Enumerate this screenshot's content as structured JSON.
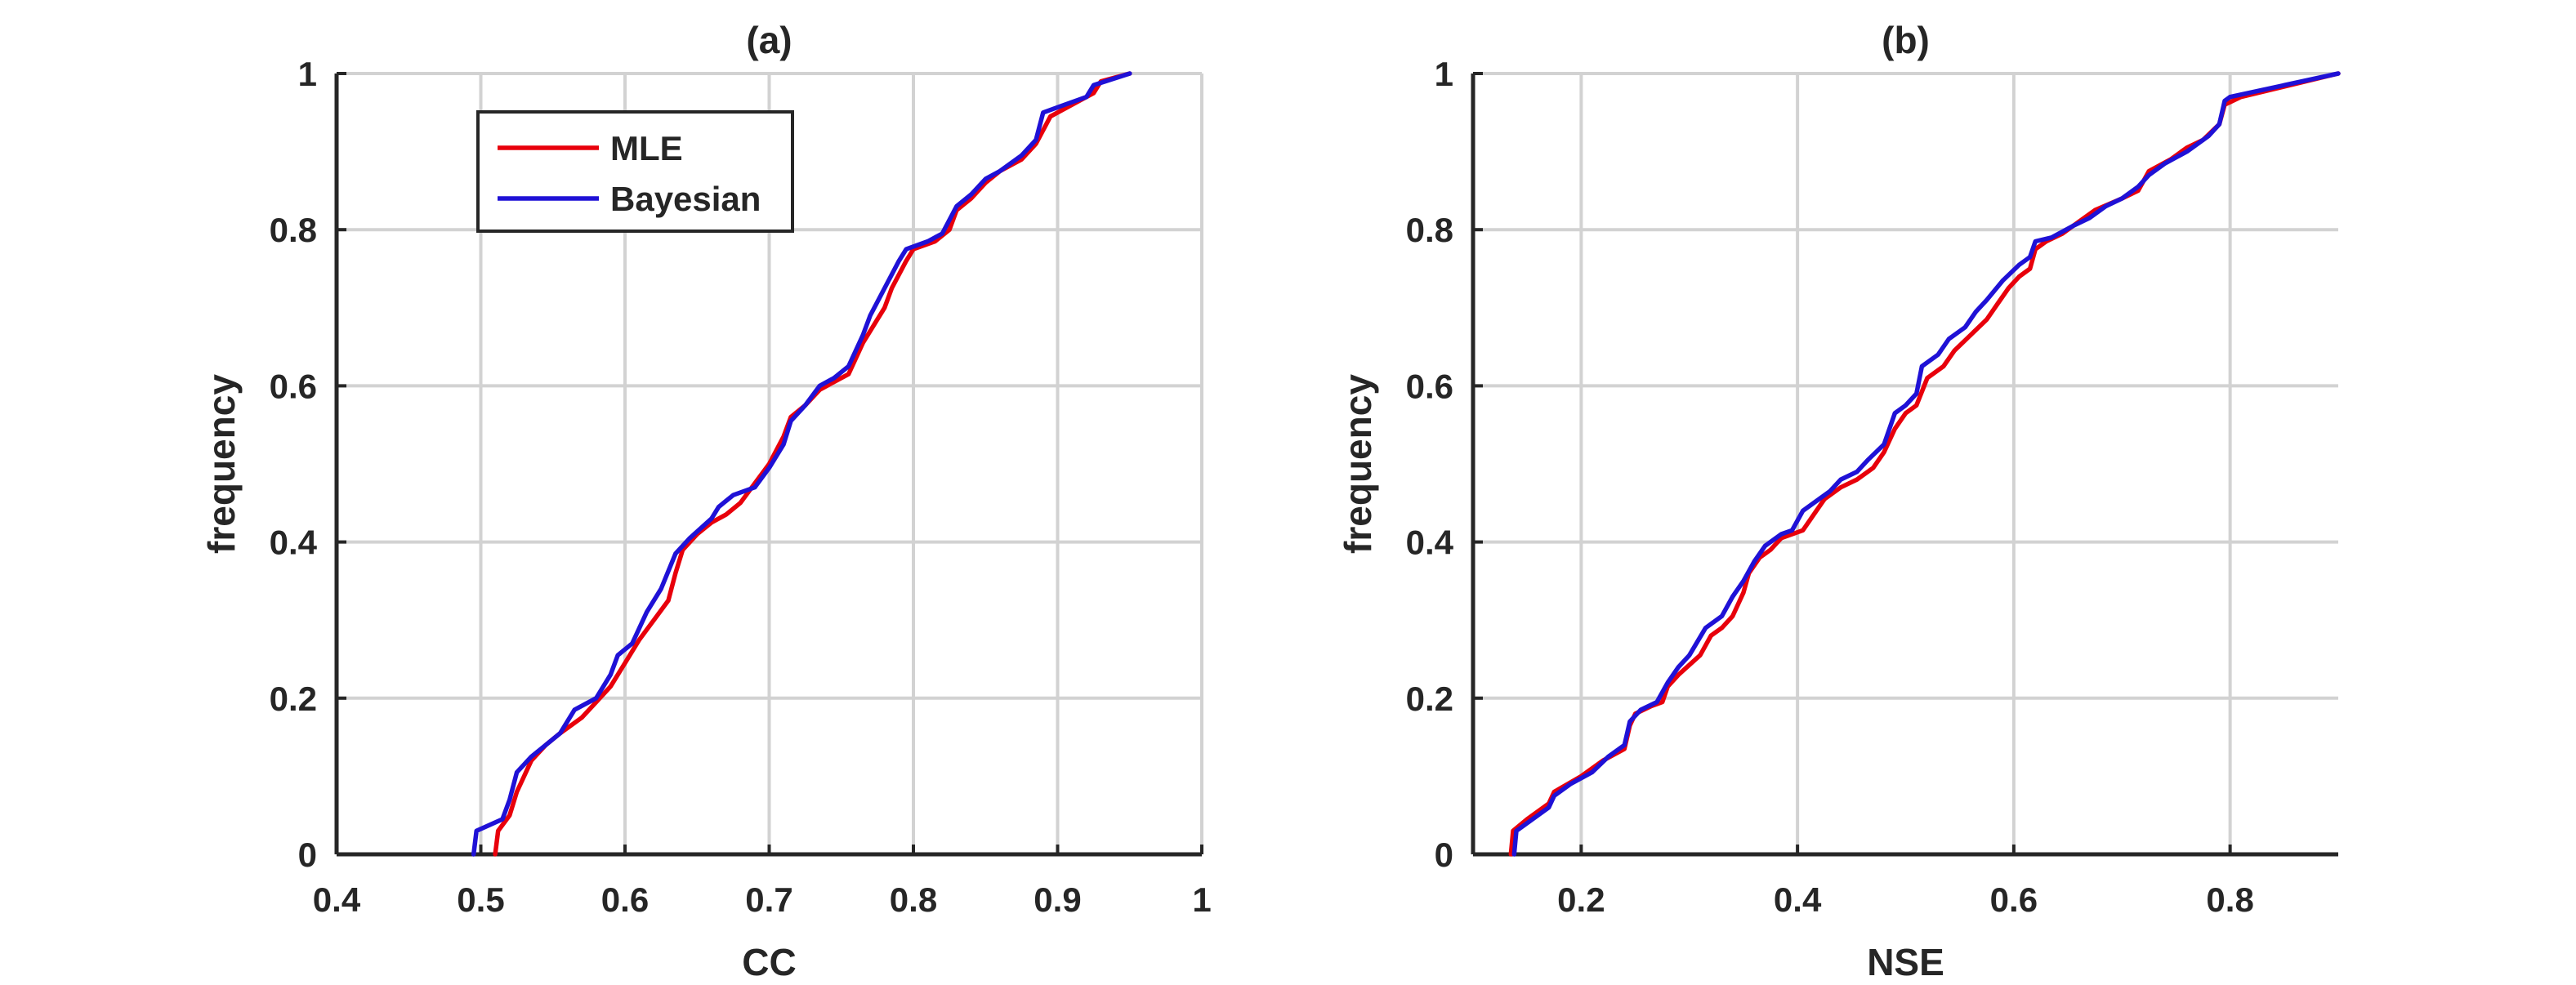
{
  "chart_data": [
    {
      "type": "line",
      "title": "(a)",
      "xlabel": "CC",
      "ylabel": "frequency",
      "xlim": [
        0.4,
        1
      ],
      "ylim": [
        0,
        1
      ],
      "xticks": [
        "0.4",
        "0.5",
        "0.6",
        "0.7",
        "0.8",
        "0.9",
        "1"
      ],
      "yticks": [
        "0",
        "0.2",
        "0.4",
        "0.6",
        "0.8",
        "1"
      ],
      "grid": true,
      "legend": {
        "placement": "top-left",
        "entries": [
          "MLE",
          "Bayesian"
        ]
      },
      "series": [
        {
          "name": "MLE",
          "color": "#e8000b",
          "points": [
            [
              0.51,
              0
            ],
            [
              0.512,
              0.03
            ],
            [
              0.52,
              0.05
            ],
            [
              0.525,
              0.08
            ],
            [
              0.53,
              0.1
            ],
            [
              0.535,
              0.12
            ],
            [
              0.545,
              0.14
            ],
            [
              0.555,
              0.155
            ],
            [
              0.57,
              0.175
            ],
            [
              0.58,
              0.195
            ],
            [
              0.59,
              0.215
            ],
            [
              0.6,
              0.245
            ],
            [
              0.61,
              0.275
            ],
            [
              0.62,
              0.3
            ],
            [
              0.63,
              0.325
            ],
            [
              0.635,
              0.36
            ],
            [
              0.64,
              0.39
            ],
            [
              0.65,
              0.41
            ],
            [
              0.66,
              0.425
            ],
            [
              0.67,
              0.435
            ],
            [
              0.68,
              0.45
            ],
            [
              0.69,
              0.475
            ],
            [
              0.7,
              0.5
            ],
            [
              0.71,
              0.535
            ],
            [
              0.715,
              0.56
            ],
            [
              0.725,
              0.575
            ],
            [
              0.735,
              0.595
            ],
            [
              0.745,
              0.605
            ],
            [
              0.755,
              0.615
            ],
            [
              0.765,
              0.655
            ],
            [
              0.775,
              0.685
            ],
            [
              0.78,
              0.7
            ],
            [
              0.785,
              0.725
            ],
            [
              0.795,
              0.76
            ],
            [
              0.8,
              0.775
            ],
            [
              0.815,
              0.785
            ],
            [
              0.825,
              0.8
            ],
            [
              0.83,
              0.825
            ],
            [
              0.84,
              0.84
            ],
            [
              0.85,
              0.86
            ],
            [
              0.86,
              0.875
            ],
            [
              0.875,
              0.89
            ],
            [
              0.885,
              0.91
            ],
            [
              0.895,
              0.945
            ],
            [
              0.91,
              0.96
            ],
            [
              0.925,
              0.975
            ],
            [
              0.93,
              0.99
            ],
            [
              0.95,
              1
            ]
          ]
        },
        {
          "name": "Bayesian",
          "color": "#1f11d6",
          "points": [
            [
              0.495,
              0
            ],
            [
              0.497,
              0.03
            ],
            [
              0.515,
              0.045
            ],
            [
              0.52,
              0.07
            ],
            [
              0.525,
              0.105
            ],
            [
              0.535,
              0.125
            ],
            [
              0.545,
              0.14
            ],
            [
              0.555,
              0.155
            ],
            [
              0.565,
              0.185
            ],
            [
              0.58,
              0.2
            ],
            [
              0.59,
              0.23
            ],
            [
              0.595,
              0.255
            ],
            [
              0.605,
              0.27
            ],
            [
              0.615,
              0.31
            ],
            [
              0.625,
              0.34
            ],
            [
              0.635,
              0.385
            ],
            [
              0.645,
              0.405
            ],
            [
              0.66,
              0.43
            ],
            [
              0.665,
              0.445
            ],
            [
              0.675,
              0.46
            ],
            [
              0.69,
              0.47
            ],
            [
              0.7,
              0.495
            ],
            [
              0.71,
              0.525
            ],
            [
              0.715,
              0.555
            ],
            [
              0.725,
              0.575
            ],
            [
              0.735,
              0.6
            ],
            [
              0.745,
              0.61
            ],
            [
              0.755,
              0.625
            ],
            [
              0.765,
              0.665
            ],
            [
              0.77,
              0.69
            ],
            [
              0.78,
              0.725
            ],
            [
              0.79,
              0.76
            ],
            [
              0.795,
              0.775
            ],
            [
              0.81,
              0.785
            ],
            [
              0.82,
              0.795
            ],
            [
              0.83,
              0.83
            ],
            [
              0.84,
              0.845
            ],
            [
              0.85,
              0.865
            ],
            [
              0.86,
              0.875
            ],
            [
              0.875,
              0.895
            ],
            [
              0.885,
              0.915
            ],
            [
              0.89,
              0.95
            ],
            [
              0.905,
              0.96
            ],
            [
              0.92,
              0.97
            ],
            [
              0.925,
              0.985
            ],
            [
              0.95,
              1
            ]
          ]
        }
      ]
    },
    {
      "type": "line",
      "title": "(b)",
      "xlabel": "NSE",
      "ylabel": "frequency",
      "xlim": [
        0.1,
        0.9
      ],
      "ylim": [
        0,
        1
      ],
      "xticks": [
        "0.2",
        "0.4",
        "0.6",
        "0.8"
      ],
      "yticks": [
        "0",
        "0.2",
        "0.4",
        "0.6",
        "0.8",
        "1"
      ],
      "grid": true,
      "series": [
        {
          "name": "MLE",
          "color": "#e8000b",
          "points": [
            [
              0.135,
              0
            ],
            [
              0.137,
              0.03
            ],
            [
              0.15,
              0.045
            ],
            [
              0.17,
              0.065
            ],
            [
              0.175,
              0.08
            ],
            [
              0.2,
              0.1
            ],
            [
              0.22,
              0.12
            ],
            [
              0.24,
              0.135
            ],
            [
              0.245,
              0.165
            ],
            [
              0.25,
              0.18
            ],
            [
              0.265,
              0.19
            ],
            [
              0.275,
              0.195
            ],
            [
              0.28,
              0.215
            ],
            [
              0.29,
              0.23
            ],
            [
              0.31,
              0.255
            ],
            [
              0.32,
              0.28
            ],
            [
              0.33,
              0.29
            ],
            [
              0.34,
              0.305
            ],
            [
              0.35,
              0.335
            ],
            [
              0.355,
              0.36
            ],
            [
              0.365,
              0.38
            ],
            [
              0.375,
              0.39
            ],
            [
              0.385,
              0.405
            ],
            [
              0.405,
              0.415
            ],
            [
              0.415,
              0.435
            ],
            [
              0.425,
              0.455
            ],
            [
              0.44,
              0.47
            ],
            [
              0.455,
              0.48
            ],
            [
              0.47,
              0.495
            ],
            [
              0.48,
              0.515
            ],
            [
              0.49,
              0.545
            ],
            [
              0.5,
              0.565
            ],
            [
              0.51,
              0.575
            ],
            [
              0.52,
              0.61
            ],
            [
              0.535,
              0.625
            ],
            [
              0.545,
              0.645
            ],
            [
              0.56,
              0.665
            ],
            [
              0.575,
              0.685
            ],
            [
              0.585,
              0.705
            ],
            [
              0.595,
              0.725
            ],
            [
              0.605,
              0.74
            ],
            [
              0.615,
              0.75
            ],
            [
              0.62,
              0.775
            ],
            [
              0.63,
              0.785
            ],
            [
              0.645,
              0.795
            ],
            [
              0.66,
              0.81
            ],
            [
              0.675,
              0.825
            ],
            [
              0.7,
              0.84
            ],
            [
              0.715,
              0.85
            ],
            [
              0.725,
              0.875
            ],
            [
              0.745,
              0.89
            ],
            [
              0.76,
              0.905
            ],
            [
              0.775,
              0.915
            ],
            [
              0.79,
              0.935
            ],
            [
              0.795,
              0.96
            ],
            [
              0.81,
              0.97
            ],
            [
              0.9,
              1
            ]
          ]
        },
        {
          "name": "Bayesian",
          "color": "#1f11d6",
          "points": [
            [
              0.138,
              0
            ],
            [
              0.14,
              0.03
            ],
            [
              0.155,
              0.045
            ],
            [
              0.17,
              0.06
            ],
            [
              0.175,
              0.075
            ],
            [
              0.19,
              0.09
            ],
            [
              0.21,
              0.105
            ],
            [
              0.225,
              0.125
            ],
            [
              0.24,
              0.14
            ],
            [
              0.245,
              0.17
            ],
            [
              0.255,
              0.185
            ],
            [
              0.27,
              0.195
            ],
            [
              0.28,
              0.22
            ],
            [
              0.29,
              0.24
            ],
            [
              0.3,
              0.255
            ],
            [
              0.315,
              0.29
            ],
            [
              0.33,
              0.305
            ],
            [
              0.34,
              0.33
            ],
            [
              0.35,
              0.35
            ],
            [
              0.36,
              0.375
            ],
            [
              0.37,
              0.395
            ],
            [
              0.385,
              0.41
            ],
            [
              0.395,
              0.415
            ],
            [
              0.405,
              0.44
            ],
            [
              0.42,
              0.455
            ],
            [
              0.43,
              0.465
            ],
            [
              0.44,
              0.48
            ],
            [
              0.455,
              0.49
            ],
            [
              0.465,
              0.505
            ],
            [
              0.48,
              0.525
            ],
            [
              0.49,
              0.565
            ],
            [
              0.5,
              0.575
            ],
            [
              0.51,
              0.59
            ],
            [
              0.515,
              0.625
            ],
            [
              0.53,
              0.64
            ],
            [
              0.54,
              0.66
            ],
            [
              0.555,
              0.675
            ],
            [
              0.565,
              0.695
            ],
            [
              0.575,
              0.71
            ],
            [
              0.59,
              0.735
            ],
            [
              0.605,
              0.755
            ],
            [
              0.615,
              0.765
            ],
            [
              0.62,
              0.785
            ],
            [
              0.635,
              0.79
            ],
            [
              0.655,
              0.805
            ],
            [
              0.67,
              0.815
            ],
            [
              0.685,
              0.83
            ],
            [
              0.7,
              0.84
            ],
            [
              0.715,
              0.855
            ],
            [
              0.725,
              0.87
            ],
            [
              0.74,
              0.885
            ],
            [
              0.76,
              0.9
            ],
            [
              0.78,
              0.92
            ],
            [
              0.79,
              0.935
            ],
            [
              0.795,
              0.965
            ],
            [
              0.8,
              0.97
            ],
            [
              0.9,
              1
            ]
          ]
        }
      ]
    }
  ]
}
